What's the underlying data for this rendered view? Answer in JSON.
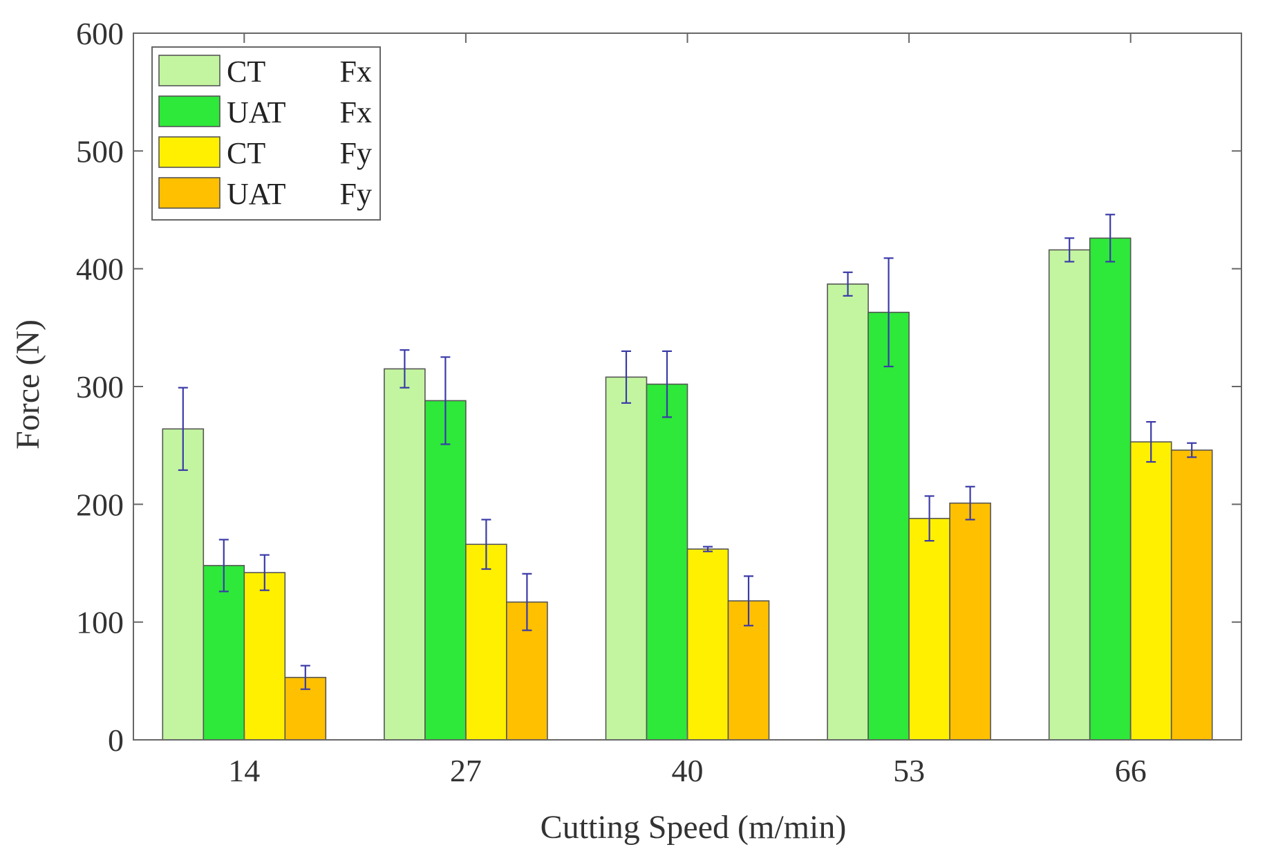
{
  "chart_data": {
    "type": "bar",
    "title": "",
    "xlabel": "Cutting Speed (m/min)",
    "ylabel": "Force (N)",
    "categories": [
      "14",
      "27",
      "40",
      "53",
      "66"
    ],
    "ylim": [
      0,
      600
    ],
    "yticks": [
      0,
      100,
      200,
      300,
      400,
      500,
      600
    ],
    "ytick_labels": [
      "0",
      "100",
      "200",
      "300",
      "400",
      "500",
      "600"
    ],
    "grid": false,
    "legend_position": "top-left",
    "series": [
      {
        "name": "CT",
        "component": "Fx",
        "color": "#c3f5a0",
        "values": [
          264,
          315,
          308,
          387,
          416
        ],
        "errors": [
          35,
          16,
          22,
          10,
          10
        ]
      },
      {
        "name": "UAT",
        "component": "Fx",
        "color": "#2ee83a",
        "values": [
          148,
          288,
          302,
          363,
          426
        ],
        "errors": [
          22,
          37,
          28,
          46,
          20
        ]
      },
      {
        "name": "CT",
        "component": "Fy",
        "color": "#fff000",
        "values": [
          142,
          166,
          162,
          188,
          253
        ],
        "errors": [
          15,
          21,
          2,
          19,
          17
        ]
      },
      {
        "name": "UAT",
        "component": "Fy",
        "color": "#ffc000",
        "values": [
          53,
          117,
          118,
          201,
          246
        ],
        "errors": [
          10,
          24,
          21,
          14,
          6
        ]
      }
    ]
  }
}
